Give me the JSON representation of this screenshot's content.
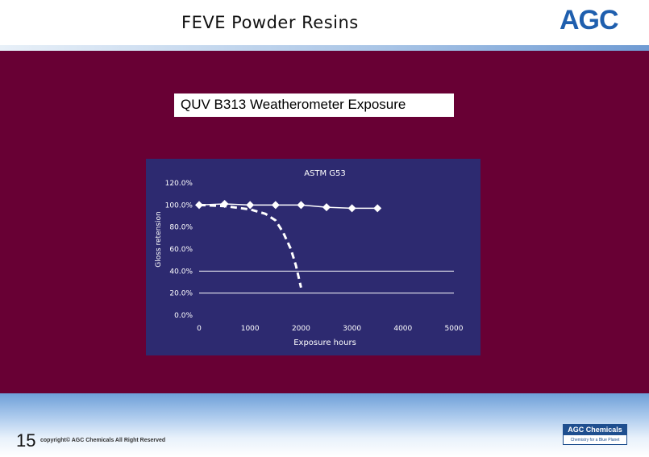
{
  "header": {
    "title": "FEVE Powder Resins",
    "logo_text": "AGC"
  },
  "slide": {
    "subtitle": "QUV B313 Weatherometer Exposure"
  },
  "footer": {
    "page_number": "15",
    "copyright": "copyright© AGC Chemicals All Right Reserved",
    "brand_top": "AGC Chemicals",
    "brand_tagline": "Chemistry for a Blue Planet"
  },
  "colors": {
    "background_maroon": "#680034",
    "chart_background": "#2d2a70",
    "brand_blue": "#1f5fae",
    "series_color": "#ffffff"
  },
  "chart_data": {
    "type": "line",
    "title": "ASTM G53",
    "xlabel": "Exposure hours",
    "ylabel": "Gloss retension",
    "x_ticks": [
      "0",
      "1000",
      "2000",
      "3000",
      "4000",
      "5000"
    ],
    "y_ticks": [
      "0.0%",
      "20.0%",
      "40.0%",
      "60.0%",
      "80.0%",
      "100.0%",
      "120.0%"
    ],
    "xlim": [
      0,
      5000
    ],
    "ylim": [
      0,
      120
    ],
    "grid": "horizontal",
    "series": [
      {
        "style": "solid-markers",
        "points": [
          [
            0,
            100
          ],
          [
            500,
            101
          ],
          [
            1000,
            100
          ],
          [
            1500,
            100
          ],
          [
            2000,
            100
          ],
          [
            2500,
            98
          ],
          [
            3000,
            97
          ],
          [
            3500,
            97
          ]
        ]
      },
      {
        "style": "dashed",
        "points": [
          [
            0,
            100
          ],
          [
            500,
            99
          ],
          [
            1000,
            96
          ],
          [
            1300,
            92
          ],
          [
            1500,
            86
          ],
          [
            1650,
            75
          ],
          [
            1800,
            60
          ],
          [
            1900,
            45
          ],
          [
            2000,
            25
          ]
        ]
      }
    ]
  }
}
